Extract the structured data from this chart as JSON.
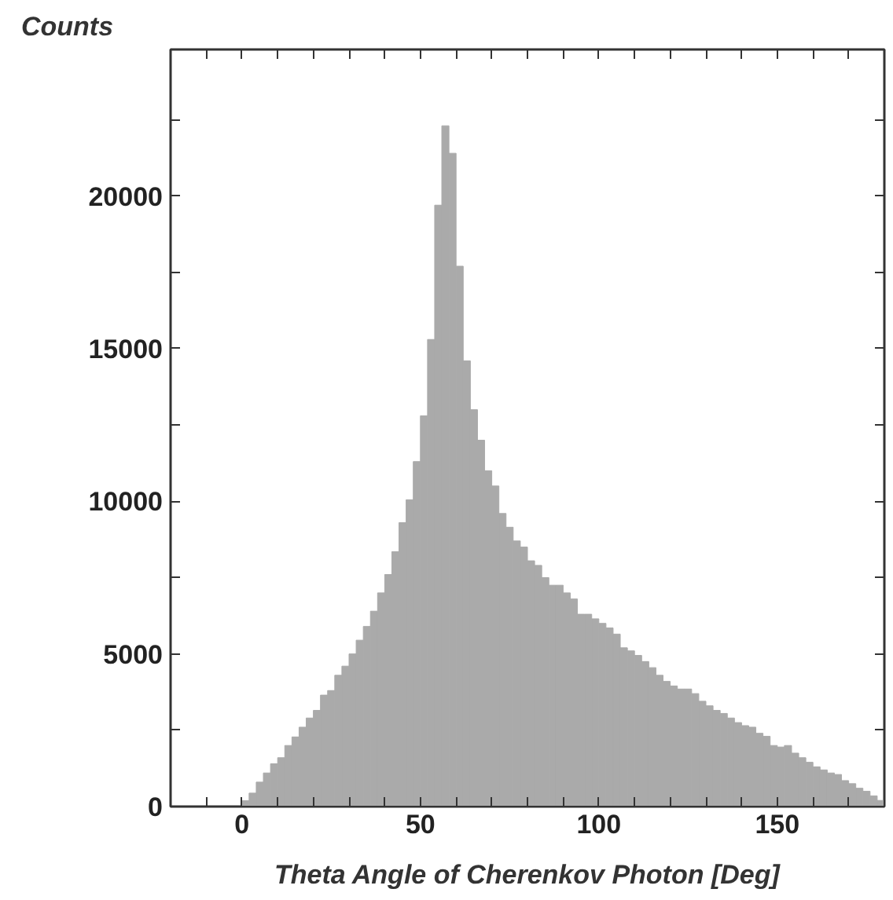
{
  "chart_data": {
    "type": "histogram",
    "xlabel": "Theta Angle of Cherenkov Photon [Deg]",
    "ylabel": "Counts",
    "color": "#aaaaaa",
    "bins": [
      0,
      2,
      4,
      6,
      8,
      10,
      12,
      14,
      16,
      18,
      20,
      22,
      24,
      26,
      28,
      30,
      32,
      34,
      36,
      38,
      40,
      42,
      44,
      46,
      48,
      50,
      52,
      54,
      56,
      58,
      60,
      62,
      64,
      66,
      68,
      70,
      72,
      74,
      76,
      78,
      80,
      82,
      84,
      86,
      88,
      90,
      92,
      94,
      96,
      98,
      100,
      102,
      104,
      106,
      108,
      110,
      112,
      114,
      116,
      118,
      120,
      122,
      124,
      126,
      128,
      130,
      132,
      134,
      136,
      138,
      140,
      142,
      144,
      146,
      148,
      150,
      152,
      154,
      156,
      158,
      160,
      162,
      164,
      166,
      168,
      170,
      172,
      174,
      176,
      178,
      180
    ],
    "values": [
      190,
      440,
      800,
      1100,
      1400,
      1600,
      2000,
      2280,
      2600,
      2900,
      3150,
      3650,
      3800,
      4300,
      4600,
      5000,
      5450,
      5900,
      6400,
      7000,
      7600,
      8350,
      9300,
      10050,
      11300,
      12800,
      15300,
      19700,
      22300,
      21400,
      17700,
      14600,
      13000,
      12000,
      11000,
      10500,
      9600,
      9150,
      8700,
      8500,
      8050,
      7900,
      7500,
      7250,
      7250,
      7000,
      6800,
      6300,
      6300,
      6150,
      6000,
      5850,
      5650,
      5200,
      5100,
      4950,
      4750,
      4550,
      4300,
      4100,
      3950,
      3850,
      3850,
      3700,
      3450,
      3300,
      3150,
      3050,
      2900,
      2750,
      2650,
      2600,
      2400,
      2300,
      2000,
      1950,
      2000,
      1750,
      1600,
      1450,
      1300,
      1200,
      1100,
      1050,
      850,
      750,
      600,
      500,
      350,
      200
    ],
    "xlim": [
      -20,
      180
    ],
    "ylim": [
      0,
      24800
    ],
    "xticks": [
      {
        "value": -10,
        "label": null
      },
      0,
      {
        "value": 10,
        "label": null
      },
      {
        "value": 20,
        "label": null
      },
      {
        "value": 30,
        "label": null
      },
      {
        "value": 40,
        "label": null
      },
      50,
      {
        "value": 60,
        "label": null
      },
      {
        "value": 70,
        "label": null
      },
      {
        "value": 80,
        "label": null
      },
      {
        "value": 90,
        "label": null
      },
      100,
      {
        "value": 110,
        "label": null
      },
      {
        "value": 120,
        "label": null
      },
      {
        "value": 130,
        "label": null
      },
      {
        "value": 140,
        "label": null
      },
      150,
      {
        "value": 160,
        "label": null
      },
      {
        "value": 170,
        "label": null
      }
    ],
    "yticks": [
      0,
      {
        "value": 2500,
        "label": null
      },
      5000,
      {
        "value": 7500,
        "label": null
      },
      10000,
      {
        "value": 12500,
        "label": null
      },
      15000,
      {
        "value": 17500,
        "label": null
      },
      20000,
      {
        "value": 22500,
        "label": null
      }
    ],
    "grid": false
  }
}
